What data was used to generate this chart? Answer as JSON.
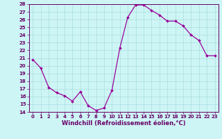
{
  "x": [
    0,
    1,
    2,
    3,
    4,
    5,
    6,
    7,
    8,
    9,
    10,
    11,
    12,
    13,
    14,
    15,
    16,
    17,
    18,
    19,
    20,
    21,
    22,
    23
  ],
  "y": [
    20.8,
    19.7,
    17.2,
    16.5,
    16.1,
    15.4,
    16.6,
    14.8,
    14.2,
    14.5,
    16.8,
    22.3,
    26.3,
    27.9,
    27.9,
    27.2,
    26.6,
    25.8,
    25.8,
    25.2,
    24.0,
    23.3,
    21.3,
    21.3
  ],
  "line_color": "#990099",
  "marker_color": "#990099",
  "bg_color": "#cef5f5",
  "grid_color": "#aadddd",
  "xlabel": "Windchill (Refroidissement éolien,°C)",
  "ylim": [
    14,
    28
  ],
  "xlim_min": -0.5,
  "xlim_max": 23.5,
  "yticks": [
    14,
    15,
    16,
    17,
    18,
    19,
    20,
    21,
    22,
    23,
    24,
    25,
    26,
    27,
    28
  ],
  "xticks": [
    0,
    1,
    2,
    3,
    4,
    5,
    6,
    7,
    8,
    9,
    10,
    11,
    12,
    13,
    14,
    15,
    16,
    17,
    18,
    19,
    20,
    21,
    22,
    23
  ],
  "tick_fontsize": 5.0,
  "xlabel_fontsize": 6.0,
  "marker_size": 2.0,
  "linewidth": 0.9
}
